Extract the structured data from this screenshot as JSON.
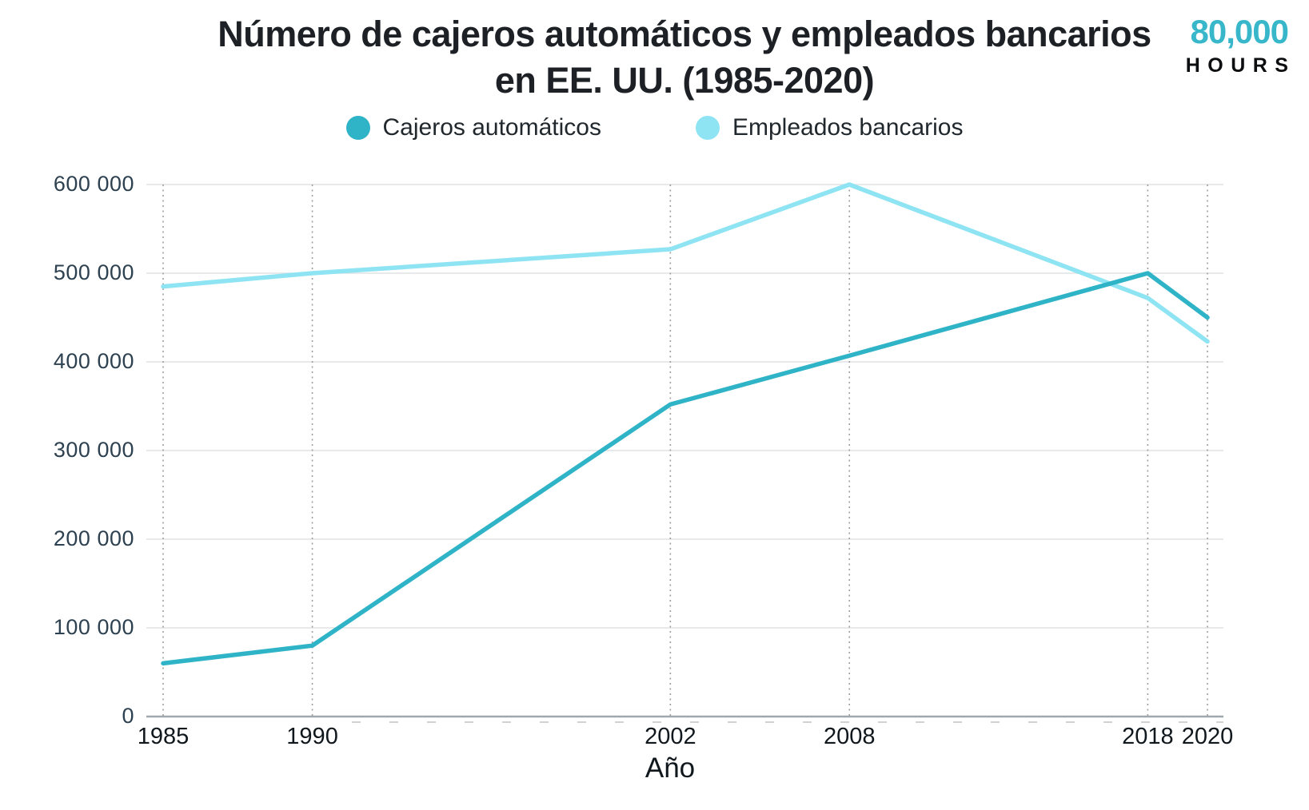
{
  "header": {
    "title_line1": "Número de cajeros automáticos y empleados bancarios",
    "title_line2": "en EE. UU. (1985-2020)"
  },
  "brand": {
    "number": "80,000",
    "word": "HOURS",
    "color": "#38b7cb"
  },
  "chart_data": {
    "type": "line",
    "title": "Número de cajeros automáticos y empleados bancarios en EE. UU. (1985-2020)",
    "xlabel": "Año",
    "ylabel": "",
    "x": [
      1985,
      1990,
      2002,
      2008,
      2018,
      2020
    ],
    "xtick_labels": [
      "1985",
      "1990",
      "2002",
      "2008",
      "2018",
      "2020"
    ],
    "series": [
      {
        "name": "Cajeros automáticos",
        "color": "#2fb3c7",
        "values": [
          60000,
          80000,
          352000,
          407000,
          500000,
          450000
        ]
      },
      {
        "name": "Empleados bancarios",
        "color": "#8ee4f2",
        "values": [
          485000,
          500000,
          527000,
          600000,
          472000,
          423000
        ]
      }
    ],
    "ylim": [
      0,
      600000
    ],
    "xlim": [
      1985,
      2020
    ],
    "yticks": [
      0,
      100000,
      200000,
      300000,
      400000,
      500000,
      600000
    ],
    "ytick_labels": [
      "0",
      "100 000",
      "200 000",
      "300 000",
      "400 000",
      "500 000",
      "600 000"
    ],
    "legend_position": "top",
    "grid": "horizontal solid light; vertical dotted at labeled years",
    "axis_color": "#9fa8ac",
    "gridline_color": "#dfe2e3",
    "vertical_gridline_color": "#9e9e9e"
  }
}
